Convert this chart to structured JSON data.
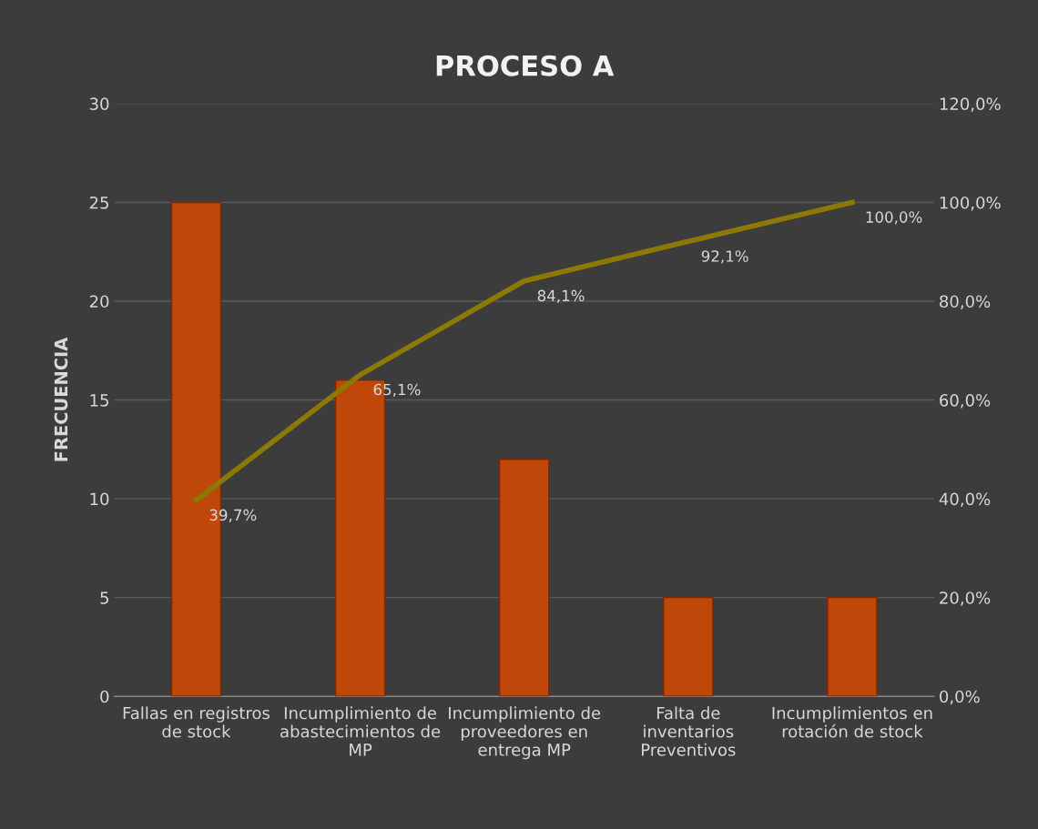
{
  "chart_data": {
    "type": "bar",
    "title": "PROCESO A",
    "ylabel": "FRECUENCIA",
    "categories": [
      "Fallas en registros de stock",
      "Incumplimiento de abastecimientos de MP",
      "Incumplimiento de proveedores en entrega MP",
      "Falta de inventarios Preventivos",
      "Incumplimientos en rotación de stock"
    ],
    "series": [
      {
        "color": "#c0470a",
        "values": [
          25,
          16,
          12,
          5,
          5
        ]
      },
      {
        "type": "line",
        "axis": "y2",
        "color": "#8c7a00",
        "values": [
          39.7,
          65.1,
          84.1,
          92.1,
          100.0
        ],
        "value_labels": [
          "39,7%",
          "65,1%",
          "84,1%",
          "92,1%",
          "100,0%"
        ]
      }
    ],
    "ylim": [
      0,
      30
    ],
    "yticks": [
      0,
      5,
      10,
      15,
      20,
      25,
      30
    ],
    "y2lim": [
      0,
      120
    ],
    "y2ticks": [
      {
        "value": 0,
        "label": "0,0%"
      },
      {
        "value": 20,
        "label": "20,0%"
      },
      {
        "value": 40,
        "label": "40,0%"
      },
      {
        "value": 60,
        "label": "60,0%"
      },
      {
        "value": 80,
        "label": "80,0%"
      },
      {
        "value": 100,
        "label": "100,0%"
      },
      {
        "value": 120,
        "label": "120,0%"
      }
    ],
    "grid": "y",
    "marker": "none",
    "line_style": "solid"
  }
}
